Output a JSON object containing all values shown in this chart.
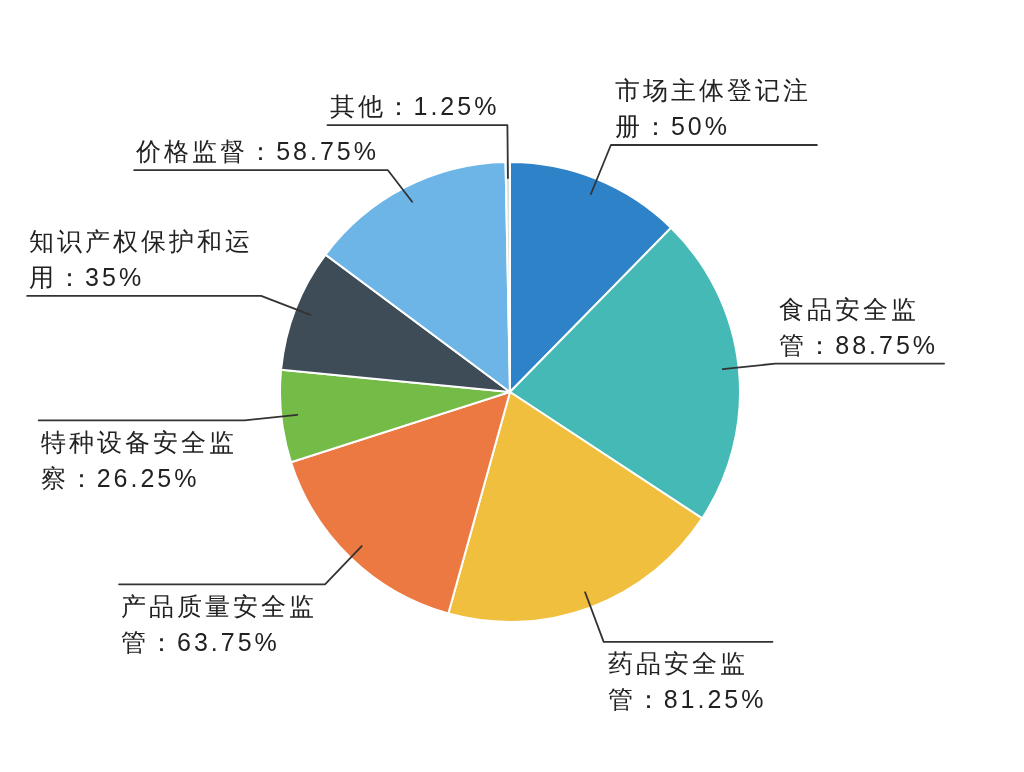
{
  "chart_data": {
    "type": "pie",
    "categories": [
      "市场主体登记注册",
      "食品安全监管",
      "药品安全监管",
      "产品质量安全监管",
      "特种设备安全监察",
      "知识产权保护和运用",
      "价格监督",
      "其他"
    ],
    "values": [
      50,
      88.75,
      81.25,
      63.75,
      26.25,
      35,
      58.75,
      1.25
    ],
    "value_labels": [
      "50%",
      "88.75%",
      "81.25%",
      "63.75%",
      "26.25%",
      "35%",
      "58.75%",
      "1.25%"
    ],
    "colors": [
      "#2e82c8",
      "#45b9b6",
      "#f0bf3e",
      "#ec7842",
      "#74bc47",
      "#3e4c58",
      "#6cb5e6",
      "#d6e3e0"
    ]
  }
}
